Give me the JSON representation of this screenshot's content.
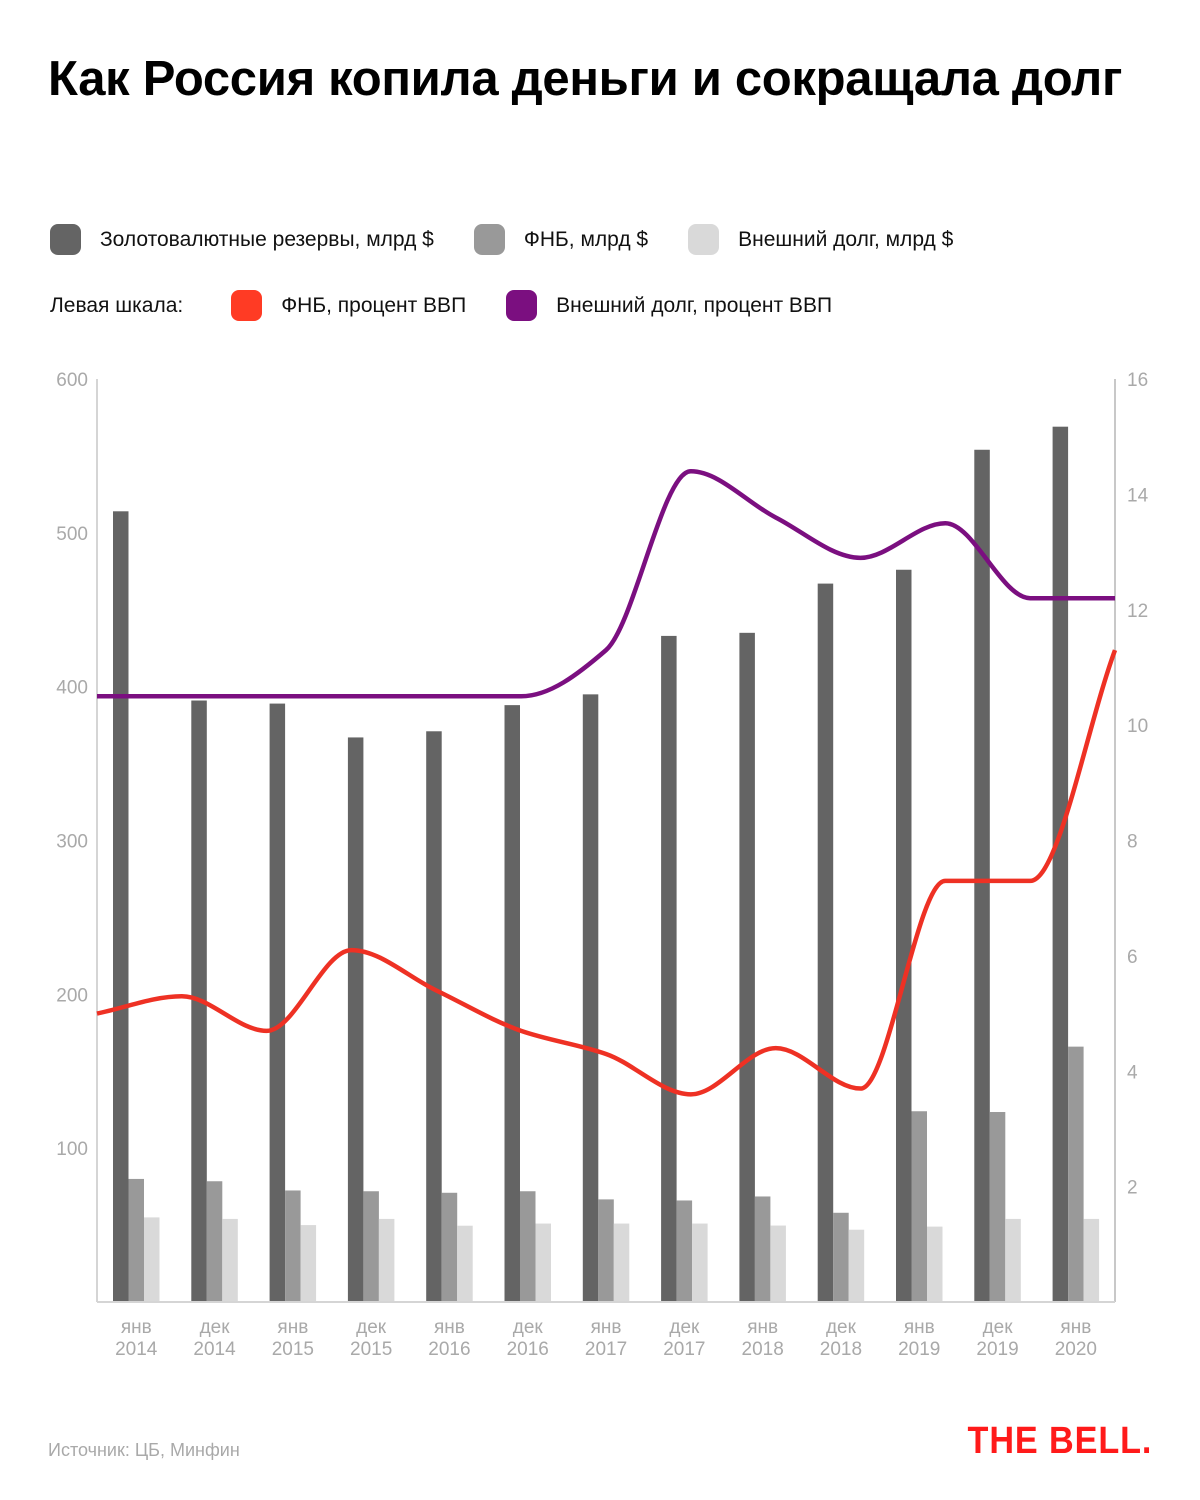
{
  "chart_data": {
    "type": "bar",
    "title": "Как Россия копила деньги и сокращала долг",
    "categories": [
      [
        "янв",
        "2014"
      ],
      [
        "дек",
        "2014"
      ],
      [
        "янв",
        "2015"
      ],
      [
        "дек",
        "2015"
      ],
      [
        "янв",
        "2016"
      ],
      [
        "дек",
        "2016"
      ],
      [
        "янв",
        "2017"
      ],
      [
        "дек",
        "2017"
      ],
      [
        "янв",
        "2018"
      ],
      [
        "дек",
        "2018"
      ],
      [
        "янв",
        "2019"
      ],
      [
        "дек",
        "2019"
      ],
      [
        "янв",
        "2020"
      ]
    ],
    "bar_series": [
      {
        "name": "Золотовалютные резервы, млрд $",
        "color": "#646464",
        "values": [
          514,
          391,
          389,
          367,
          371,
          388,
          395,
          433,
          435,
          467,
          476,
          554,
          569
        ]
      },
      {
        "name": "ФНБ, млрд $",
        "color": "#999999",
        "values": [
          80,
          78.5,
          72.5,
          72,
          71,
          72,
          66.7,
          66,
          68.6,
          58,
          124,
          123.5,
          166
        ]
      },
      {
        "name": "Внешний долг, млрд $",
        "color": "#d9d9d9",
        "values": [
          55,
          54,
          50,
          54,
          49.6,
          51,
          51,
          51,
          49.7,
          47,
          49,
          54,
          54
        ]
      }
    ],
    "line_series_label": "Левая шкала:",
    "line_series": [
      {
        "name": "ФНБ, процент ВВП",
        "color": "#ee3124",
        "axis": "right",
        "values": [
          5.0,
          5.3,
          4.7,
          6.1,
          5.4,
          4.7,
          4.3,
          3.6,
          4.4,
          3.7,
          7.3,
          7.3,
          11.3
        ]
      },
      {
        "name": "Внешний долг, процент ВВП",
        "color": "#7b0f80",
        "axis": "right",
        "values": [
          10.5,
          10.5,
          10.5,
          10.5,
          10.5,
          10.5,
          11.3,
          14.4,
          13.6,
          12.9,
          13.5,
          12.2,
          12.2
        ]
      }
    ],
    "left_axis": {
      "ylim": [
        0,
        600
      ],
      "ticks": [
        100,
        200,
        300,
        400,
        500,
        600
      ]
    },
    "right_axis": {
      "ylim": [
        0,
        16
      ],
      "ticks": [
        2,
        4,
        6,
        8,
        10,
        12,
        14,
        16
      ]
    },
    "legend_placement": "top",
    "grid": false
  },
  "legend": {
    "items": [
      {
        "label": "Золотовалютные резервы, млрд $",
        "color": "#646464"
      },
      {
        "label": "ФНБ, млрд $",
        "color": "#999999"
      },
      {
        "label": "Внешний долг, млрд $",
        "color": "#d9d9d9"
      }
    ],
    "scale_label": "Левая шкала:",
    "line_items": [
      {
        "label": "ФНБ, процент ВВП",
        "color": "#ee3124"
      },
      {
        "label": "Внешний долг, процент ВВП",
        "color": "#7b0f80"
      }
    ]
  },
  "footer": {
    "source": "Источник: ЦБ, Минфин",
    "logo": "THE BELL."
  }
}
